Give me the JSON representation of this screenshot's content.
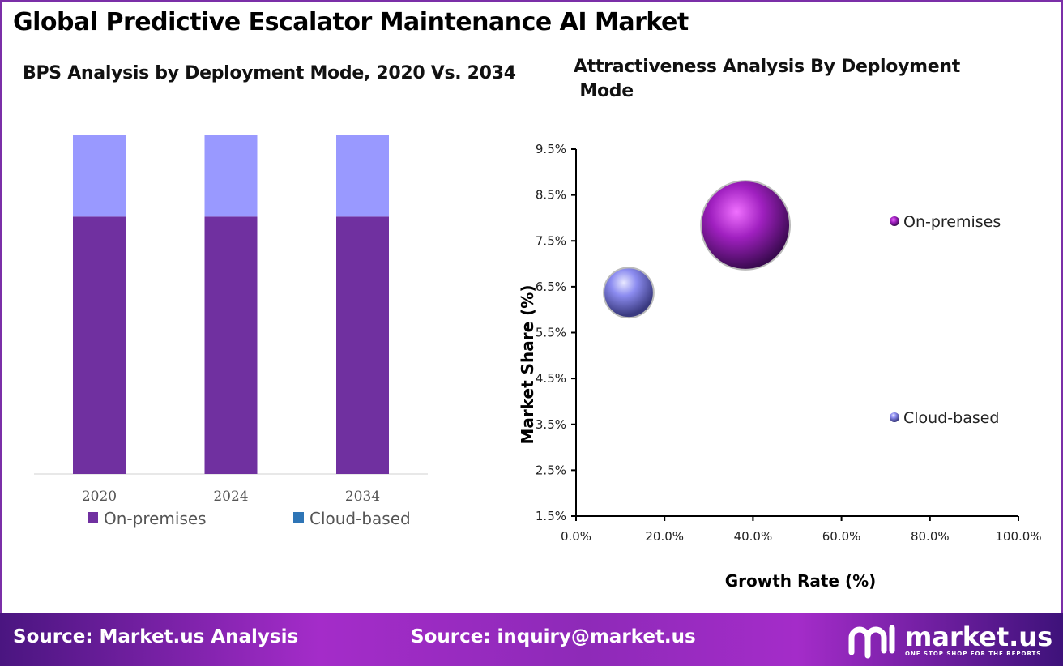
{
  "title": "Global Predictive Escalator Maintenance  AI Market",
  "footer": {
    "source1": "Source: Market.us Analysis",
    "source2": "Source: inquiry@market.us",
    "logo_name": "market.us",
    "logo_tagline": "ONE STOP SHOP FOR THE REPORTS"
  },
  "chart_data": [
    {
      "type": "bar",
      "stacked": true,
      "title": "BPS Analysis by Deployment Mode, 2020 Vs. 2034",
      "categories": [
        "2020",
        "2024",
        "2034"
      ],
      "series": [
        {
          "name": "On-premises",
          "color": "#7030a0",
          "values": [
            76,
            76,
            76
          ]
        },
        {
          "name": "Cloud-based",
          "color": "#9999ff",
          "legend_color": "#2e75b6",
          "values": [
            24,
            24,
            24
          ]
        }
      ],
      "ylim": [
        0,
        100
      ],
      "legend": "bottom"
    },
    {
      "type": "scatter",
      "bubble": true,
      "title": "Attractiveness Analysis By Deployment\n Mode",
      "xlabel": "Growth Rate (%)",
      "ylabel": "Market Share (%)",
      "xlim": [
        0,
        100
      ],
      "ylim": [
        1.5,
        9.5
      ],
      "xticks": [
        "0.0%",
        "20.0%",
        "40.0%",
        "60.0%",
        "80.0%",
        "100.0%"
      ],
      "yticks": [
        "9.5%",
        "8.5%",
        "7.5%",
        "6.5%",
        "5.5%",
        "4.5%",
        "3.5%",
        "2.5%",
        "1.5%"
      ],
      "points": [
        {
          "name": "On-premises",
          "x": 38.3,
          "y": 7.84,
          "size": 76,
          "color": "#a020c0"
        },
        {
          "name": "Cloud-based",
          "x": 11.9,
          "y": 6.37,
          "size": 24,
          "color": "#8c8cf0"
        }
      ],
      "legend": "right"
    }
  ]
}
